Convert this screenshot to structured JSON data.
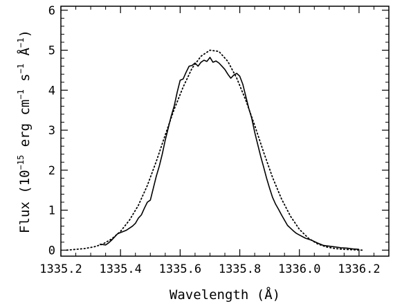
{
  "chart_data": {
    "type": "line",
    "title": "",
    "xlabel": "Wavelength (Å)",
    "ylabel": {
      "prefix": "Flux (10",
      "exp1": "−15",
      "mid1": " erg cm",
      "exp2": "−1",
      "mid2": " s",
      "exp3": "−1",
      "mid3": " Å",
      "exp4": "−1",
      "suffix": ")"
    },
    "xlim": [
      1335.2,
      1336.3
    ],
    "ylim": [
      -0.15,
      6.1
    ],
    "x_ticks": [
      1335.2,
      1335.4,
      1335.6,
      1335.8,
      1336.0,
      1336.2
    ],
    "x_tick_labels": [
      "1335.2",
      "1335.4",
      "1335.6",
      "1335.8",
      "1336.0",
      "1336.2"
    ],
    "y_ticks": [
      0,
      1,
      2,
      3,
      4,
      5,
      6
    ],
    "y_tick_labels": [
      "0",
      "1",
      "2",
      "3",
      "4",
      "5",
      "6"
    ],
    "grid": false,
    "series": [
      {
        "style": "solid",
        "color": "#000000",
        "x": [
          1335.33,
          1335.35,
          1335.36,
          1335.37,
          1335.38,
          1335.39,
          1335.4,
          1335.41,
          1335.42,
          1335.43,
          1335.44,
          1335.45,
          1335.46,
          1335.47,
          1335.48,
          1335.49,
          1335.5,
          1335.51,
          1335.52,
          1335.53,
          1335.54,
          1335.55,
          1335.56,
          1335.57,
          1335.58,
          1335.59,
          1335.6,
          1335.61,
          1335.62,
          1335.63,
          1335.64,
          1335.65,
          1335.66,
          1335.67,
          1335.68,
          1335.69,
          1335.7,
          1335.71,
          1335.72,
          1335.73,
          1335.74,
          1335.75,
          1335.76,
          1335.77,
          1335.78,
          1335.79,
          1335.8,
          1335.81,
          1335.82,
          1335.83,
          1335.84,
          1335.85,
          1335.86,
          1335.87,
          1335.88,
          1335.89,
          1335.9,
          1335.91,
          1335.92,
          1335.93,
          1335.94,
          1335.95,
          1335.96,
          1335.97,
          1335.98,
          1335.99,
          1336.0,
          1336.02,
          1336.04,
          1336.06,
          1336.08,
          1336.1,
          1336.12,
          1336.14,
          1336.16,
          1336.18,
          1336.2
        ],
        "y": [
          0.15,
          0.13,
          0.18,
          0.25,
          0.33,
          0.41,
          0.44,
          0.47,
          0.5,
          0.55,
          0.6,
          0.67,
          0.8,
          0.88,
          1.05,
          1.2,
          1.25,
          1.55,
          1.85,
          2.1,
          2.4,
          2.75,
          3.05,
          3.35,
          3.6,
          3.95,
          4.25,
          4.28,
          4.45,
          4.6,
          4.62,
          4.68,
          4.6,
          4.7,
          4.75,
          4.72,
          4.82,
          4.7,
          4.73,
          4.68,
          4.6,
          4.52,
          4.4,
          4.3,
          4.38,
          4.42,
          4.35,
          4.15,
          3.85,
          3.55,
          3.3,
          2.95,
          2.65,
          2.35,
          2.08,
          1.8,
          1.55,
          1.32,
          1.15,
          1.02,
          0.88,
          0.75,
          0.62,
          0.55,
          0.48,
          0.42,
          0.38,
          0.3,
          0.25,
          0.18,
          0.12,
          0.1,
          0.08,
          0.06,
          0.05,
          0.03,
          0.02
        ]
      },
      {
        "style": "dotted",
        "color": "#000000",
        "x": [
          1335.22,
          1335.25,
          1335.28,
          1335.31,
          1335.34,
          1335.37,
          1335.4,
          1335.43,
          1335.46,
          1335.49,
          1335.52,
          1335.55,
          1335.58,
          1335.61,
          1335.64,
          1335.67,
          1335.7,
          1335.73,
          1335.76,
          1335.79,
          1335.82,
          1335.85,
          1335.88,
          1335.91,
          1335.94,
          1335.97,
          1336.0,
          1336.03,
          1336.06,
          1336.09,
          1336.12,
          1336.15,
          1336.18,
          1336.21
        ],
        "y": [
          0.0,
          0.02,
          0.04,
          0.08,
          0.15,
          0.28,
          0.47,
          0.75,
          1.12,
          1.62,
          2.22,
          2.88,
          3.52,
          4.08,
          4.55,
          4.85,
          5.0,
          4.97,
          4.72,
          4.3,
          3.75,
          3.12,
          2.45,
          1.82,
          1.28,
          0.85,
          0.52,
          0.3,
          0.16,
          0.08,
          0.04,
          0.02,
          0.01,
          0.0
        ]
      }
    ]
  }
}
